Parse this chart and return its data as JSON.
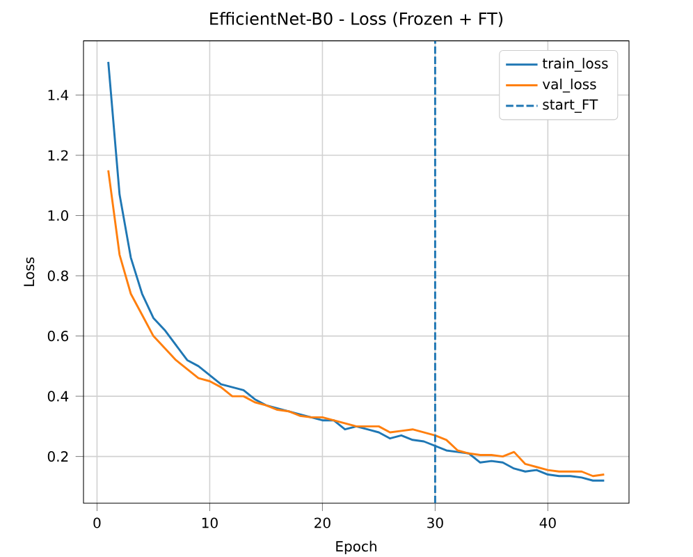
{
  "chart_data": {
    "type": "line",
    "title": "EfficientNet-B0 - Loss (Frozen + FT)",
    "xlabel": "Epoch",
    "ylabel": "Loss",
    "x": [
      1,
      2,
      3,
      4,
      5,
      6,
      7,
      8,
      9,
      10,
      11,
      12,
      13,
      14,
      15,
      16,
      17,
      18,
      19,
      20,
      21,
      22,
      23,
      24,
      25,
      26,
      27,
      28,
      29,
      30,
      31,
      32,
      33,
      34,
      35,
      36,
      37,
      38,
      39,
      40,
      41,
      42,
      43,
      44,
      45
    ],
    "series": [
      {
        "name": "train_loss",
        "color": "#1f77b4",
        "values": [
          1.51,
          1.07,
          0.86,
          0.74,
          0.66,
          0.62,
          0.57,
          0.52,
          0.5,
          0.47,
          0.44,
          0.43,
          0.42,
          0.39,
          0.37,
          0.36,
          0.35,
          0.34,
          0.33,
          0.32,
          0.32,
          0.29,
          0.3,
          0.29,
          0.28,
          0.26,
          0.27,
          0.255,
          0.25,
          0.235,
          0.22,
          0.215,
          0.21,
          0.18,
          0.185,
          0.18,
          0.16,
          0.15,
          0.155,
          0.14,
          0.135,
          0.135,
          0.13,
          0.12,
          0.12
        ]
      },
      {
        "name": "val_loss",
        "color": "#ff7f0e",
        "values": [
          1.15,
          0.87,
          0.74,
          0.67,
          0.6,
          0.56,
          0.52,
          0.49,
          0.46,
          0.45,
          0.43,
          0.4,
          0.4,
          0.38,
          0.37,
          0.355,
          0.35,
          0.335,
          0.33,
          0.33,
          0.32,
          0.31,
          0.3,
          0.3,
          0.3,
          0.28,
          0.285,
          0.29,
          0.28,
          0.27,
          0.255,
          0.22,
          0.21,
          0.205,
          0.205,
          0.2,
          0.215,
          0.175,
          0.165,
          0.155,
          0.15,
          0.15,
          0.15,
          0.135,
          0.14
        ]
      },
      {
        "name": "start_FT",
        "color": "#1f77b4",
        "line_style": "dashed",
        "x": [
          30,
          30
        ],
        "values": [
          0.045,
          1.58
        ]
      }
    ],
    "xlim": [
      -1.2,
      47.2
    ],
    "ylim": [
      0.045,
      1.58
    ],
    "xticks": [
      0,
      10,
      20,
      30,
      40
    ],
    "yticks": [
      0.2,
      0.4,
      0.6,
      0.8,
      {
        "value": 1,
        "label": "1.0"
      },
      1.2,
      1.4
    ],
    "grid": true,
    "legend": "top right",
    "line_style": "solid",
    "marker": "none"
  }
}
